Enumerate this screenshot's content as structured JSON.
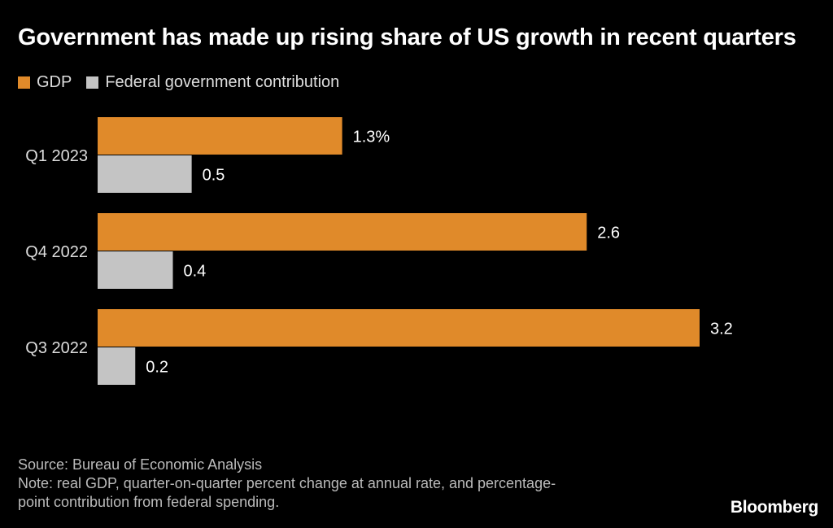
{
  "chart_data": {
    "type": "bar",
    "orientation": "horizontal",
    "title": "Government has made up rising share of US growth in recent quarters",
    "categories": [
      "Q1 2023",
      "Q4 2022",
      "Q3 2022"
    ],
    "series": [
      {
        "name": "GDP",
        "values": [
          1.3,
          2.6,
          3.2
        ],
        "labels": [
          "1.3%",
          "2.6",
          "3.2"
        ],
        "color": "#e08a2a"
      },
      {
        "name": "Federal government contribution",
        "values": [
          0.5,
          0.4,
          0.2
        ],
        "labels": [
          "0.5",
          "0.4",
          "0.2"
        ],
        "color": "#c4c4c4"
      }
    ],
    "xlim": [
      0,
      3.2
    ],
    "grid": false,
    "legend": "top-left"
  },
  "footer": {
    "source": "Source: Bureau of Economic Analysis",
    "note_line1": "Note: real GDP, quarter-on-quarter percent change at annual rate, and percentage-",
    "note_line2": "point contribution from federal spending."
  },
  "brand": "Bloomberg",
  "colors": {
    "background": "#000000",
    "text": "#ffffff"
  }
}
